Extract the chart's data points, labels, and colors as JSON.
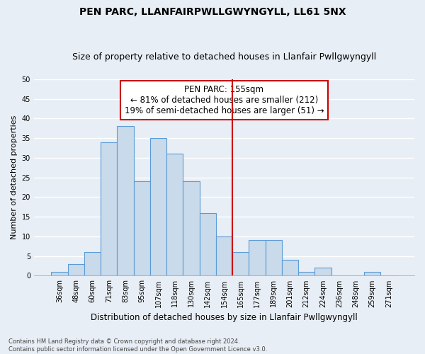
{
  "title1": "PEN PARC, LLANFAIRPWLLGWYNGYLL, LL61 5NX",
  "title2": "Size of property relative to detached houses in Llanfair Pwllgwyngyll",
  "xlabel": "Distribution of detached houses by size in Llanfair Pwllgwyngyll",
  "ylabel": "Number of detached properties",
  "footnote": "Contains HM Land Registry data © Crown copyright and database right 2024.\nContains public sector information licensed under the Open Government Licence v3.0.",
  "bin_labels": [
    "36sqm",
    "48sqm",
    "60sqm",
    "71sqm",
    "83sqm",
    "95sqm",
    "107sqm",
    "118sqm",
    "130sqm",
    "142sqm",
    "154sqm",
    "165sqm",
    "177sqm",
    "189sqm",
    "201sqm",
    "212sqm",
    "224sqm",
    "236sqm",
    "248sqm",
    "259sqm",
    "271sqm"
  ],
  "bar_heights": [
    1,
    3,
    6,
    34,
    38,
    24,
    35,
    31,
    24,
    16,
    10,
    6,
    9,
    9,
    4,
    1,
    2,
    0,
    0,
    1,
    0
  ],
  "bar_color": "#c9daea",
  "bar_edge_color": "#5b9bd5",
  "bar_edge_width": 0.8,
  "annotation_text": "PEN PARC: 155sqm\n← 81% of detached houses are smaller (212)\n19% of semi-detached houses are larger (51) →",
  "annotation_box_color": "white",
  "annotation_box_edge_color": "#cc0000",
  "vline_x": 10.5,
  "vline_color": "#cc0000",
  "ylim": [
    0,
    50
  ],
  "yticks": [
    0,
    5,
    10,
    15,
    20,
    25,
    30,
    35,
    40,
    45,
    50
  ],
  "bg_color": "#e8eef5",
  "plot_bg_color": "#e8eef5",
  "grid_color": "white",
  "title1_fontsize": 10,
  "title2_fontsize": 9,
  "xlabel_fontsize": 8.5,
  "ylabel_fontsize": 8,
  "tick_fontsize": 7,
  "annotation_fontsize": 8.5
}
